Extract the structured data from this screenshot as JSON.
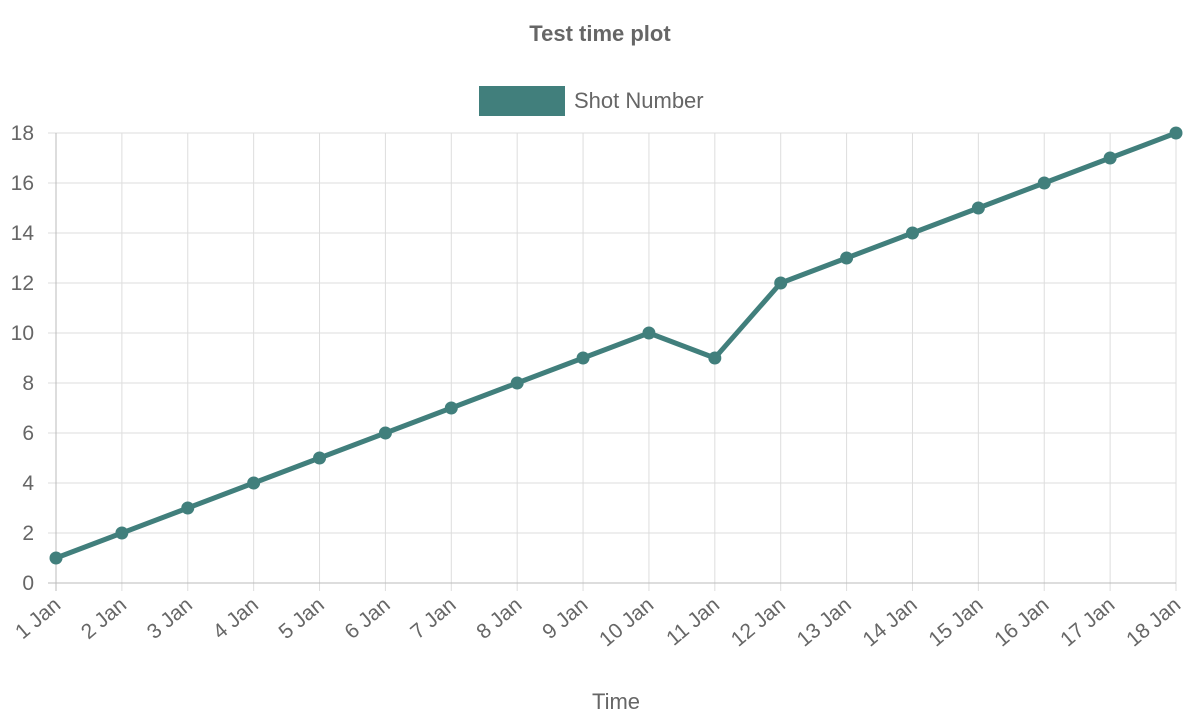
{
  "chart_data": {
    "type": "line",
    "title": "Test time plot",
    "xlabel": "Time",
    "ylabel": "",
    "ylim": [
      0,
      18
    ],
    "yticks": [
      0,
      2,
      4,
      6,
      8,
      10,
      12,
      14,
      16,
      18
    ],
    "grid": true,
    "legend_position": "top-center",
    "categories": [
      "1 Jan",
      "2 Jan",
      "3 Jan",
      "4 Jan",
      "5 Jan",
      "6 Jan",
      "7 Jan",
      "8 Jan",
      "9 Jan",
      "10 Jan",
      "11 Jan",
      "12 Jan",
      "13 Jan",
      "14 Jan",
      "15 Jan",
      "16 Jan",
      "17 Jan",
      "18 Jan"
    ],
    "series": [
      {
        "name": "Shot Number",
        "color": "#417f7c",
        "values": [
          1,
          2,
          3,
          4,
          5,
          6,
          7,
          8,
          9,
          10,
          9,
          12,
          13,
          14,
          15,
          16,
          17,
          18
        ]
      }
    ]
  }
}
